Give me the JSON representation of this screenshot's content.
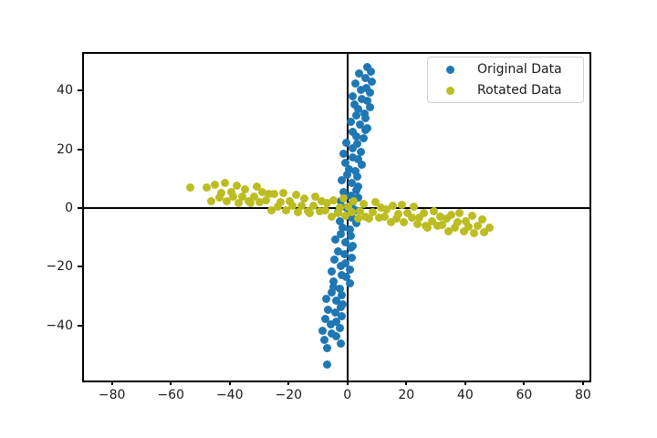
{
  "figure": {
    "background": "#ffffff",
    "plot_background": "#ffffff",
    "spine_color": "#000000"
  },
  "chart_data": {
    "type": "scatter",
    "title": "",
    "xlabel": "",
    "ylabel": "",
    "xlim": [
      -89.5,
      82.2
    ],
    "ylim": [
      -58.8,
      52.6
    ],
    "aspect": "equal",
    "grid": false,
    "zero_lines": {
      "horizontal_y": 0,
      "vertical_x": 0,
      "color": "#000000"
    },
    "x_ticks": [
      -80,
      -60,
      -40,
      -20,
      0,
      20,
      40,
      60,
      80
    ],
    "x_tick_labels": [
      "−80",
      "−60",
      "−40",
      "−20",
      "0",
      "20",
      "40",
      "60",
      "80"
    ],
    "y_ticks": [
      40,
      20,
      0,
      -20,
      -40
    ],
    "y_tick_labels": [
      "40",
      "20",
      "0",
      "−20",
      "−40"
    ],
    "legend": {
      "position": "upper right",
      "entries": [
        {
          "label": "Original Data",
          "color": "#1f77b4"
        },
        {
          "label": "Rotated Data",
          "color": "#bcbd22"
        }
      ]
    },
    "series": [
      {
        "name": "Original Data",
        "color": "#1f77b4",
        "marker_size_px": 9,
        "points": [
          [
            6.7,
            48.2
          ],
          [
            8.1,
            46.5
          ],
          [
            3.8,
            45.8
          ],
          [
            6.1,
            44.2
          ],
          [
            8.4,
            43.1
          ],
          [
            2.7,
            42.5
          ],
          [
            6.3,
            41.0
          ],
          [
            4.6,
            40.2
          ],
          [
            7.8,
            39.5
          ],
          [
            1.7,
            38.1
          ],
          [
            4.9,
            37.3
          ],
          [
            6.6,
            36.6
          ],
          [
            2.3,
            35.2
          ],
          [
            7.8,
            34.4
          ],
          [
            3.5,
            33.8
          ],
          [
            5.7,
            32.1
          ],
          [
            2.9,
            31.5
          ],
          [
            6.2,
            30.7
          ],
          [
            1.0,
            29.3
          ],
          [
            4.4,
            28.6
          ],
          [
            6.7,
            27.2
          ],
          [
            6.1,
            26.5
          ],
          [
            1.8,
            25.9
          ],
          [
            3.1,
            24.3
          ],
          [
            5.5,
            23.7
          ],
          [
            -0.4,
            22.4
          ],
          [
            3.4,
            21.8
          ],
          [
            1.7,
            20.5
          ],
          [
            4.7,
            19.2
          ],
          [
            -1.2,
            18.6
          ],
          [
            1.9,
            17.3
          ],
          [
            3.6,
            16.8
          ],
          [
            -0.7,
            15.4
          ],
          [
            4.9,
            14.7
          ],
          [
            0.4,
            13.2
          ],
          [
            2.8,
            12.6
          ],
          [
            -0.2,
            11.3
          ],
          [
            3.2,
            10.8
          ],
          [
            -2.0,
            9.4
          ],
          [
            1.4,
            8.7
          ],
          [
            3.7,
            7.3
          ],
          [
            3.0,
            6.2
          ],
          [
            -1.3,
            5.5
          ],
          [
            1.1,
            4.1
          ],
          [
            3.5,
            3.6
          ],
          [
            -2.4,
            2.2
          ],
          [
            1.4,
            1.5
          ],
          [
            -0.4,
            0.3
          ],
          [
            2.7,
            -0.8
          ],
          [
            -3.2,
            -1.4
          ],
          [
            -0.1,
            -2.7
          ],
          [
            1.6,
            -3.3
          ],
          [
            -2.7,
            -4.6
          ],
          [
            2.9,
            -5.2
          ],
          [
            -1.6,
            -6.8
          ],
          [
            0.8,
            -7.4
          ],
          [
            -2.2,
            -8.9
          ],
          [
            1.2,
            -9.5
          ],
          [
            -4.0,
            -10.8
          ],
          [
            -0.7,
            -11.6
          ],
          [
            1.7,
            -12.9
          ],
          [
            1.1,
            -13.5
          ],
          [
            -3.3,
            -14.8
          ],
          [
            -0.9,
            -15.6
          ],
          [
            1.4,
            -16.9
          ],
          [
            -4.4,
            -17.5
          ],
          [
            -0.7,
            -18.8
          ],
          [
            -2.4,
            -19.6
          ],
          [
            0.7,
            -20.9
          ],
          [
            -5.3,
            -21.7
          ],
          [
            -2.1,
            -22.8
          ],
          [
            -0.5,
            -23.6
          ],
          [
            -4.7,
            -24.9
          ],
          [
            0.8,
            -25.7
          ],
          [
            -4.8,
            -26.8
          ],
          [
            -2.6,
            -27.6
          ],
          [
            -5.5,
            -28.9
          ],
          [
            -2.0,
            -29.7
          ],
          [
            -7.2,
            -30.8
          ],
          [
            -3.8,
            -31.6
          ],
          [
            -1.6,
            -32.9
          ],
          [
            -2.2,
            -33.7
          ],
          [
            -6.5,
            -34.8
          ],
          [
            -4.0,
            -35.6
          ],
          [
            -1.8,
            -36.9
          ],
          [
            -7.6,
            -37.7
          ],
          [
            -3.9,
            -38.8
          ],
          [
            -5.6,
            -39.6
          ],
          [
            -2.5,
            -40.9
          ],
          [
            -8.5,
            -41.7
          ],
          [
            -5.2,
            -42.8
          ],
          [
            -3.7,
            -43.6
          ],
          [
            -7.9,
            -44.9
          ],
          [
            -2.4,
            -46.2
          ],
          [
            -6.9,
            -47.8
          ],
          [
            -7.0,
            -53.4
          ]
        ]
      },
      {
        "name": "Rotated Data",
        "color": "#bcbd22",
        "marker_size_px": 9,
        "points": [
          [
            48.2,
            -6.7
          ],
          [
            46.5,
            -8.1
          ],
          [
            45.8,
            -3.8
          ],
          [
            44.2,
            -6.1
          ],
          [
            43.1,
            -8.4
          ],
          [
            42.5,
            -2.7
          ],
          [
            41.0,
            -6.3
          ],
          [
            40.2,
            -4.6
          ],
          [
            39.5,
            -7.8
          ],
          [
            38.1,
            -1.7
          ],
          [
            37.3,
            -4.9
          ],
          [
            36.6,
            -6.6
          ],
          [
            35.2,
            -2.3
          ],
          [
            34.4,
            -7.8
          ],
          [
            33.8,
            -3.5
          ],
          [
            32.1,
            -5.7
          ],
          [
            31.5,
            -2.9
          ],
          [
            30.7,
            -6.2
          ],
          [
            29.3,
            -1.0
          ],
          [
            28.6,
            -4.4
          ],
          [
            27.2,
            -6.7
          ],
          [
            26.5,
            -6.1
          ],
          [
            25.9,
            -1.8
          ],
          [
            24.3,
            -3.1
          ],
          [
            23.7,
            -5.5
          ],
          [
            22.4,
            0.4
          ],
          [
            21.8,
            -3.4
          ],
          [
            20.5,
            -1.7
          ],
          [
            19.2,
            -4.7
          ],
          [
            18.6,
            1.2
          ],
          [
            17.3,
            -1.9
          ],
          [
            16.8,
            -3.6
          ],
          [
            15.4,
            0.7
          ],
          [
            14.7,
            -4.9
          ],
          [
            13.2,
            -0.4
          ],
          [
            12.6,
            -2.8
          ],
          [
            11.3,
            0.2
          ],
          [
            10.8,
            -3.2
          ],
          [
            9.4,
            2.0
          ],
          [
            8.7,
            -1.4
          ],
          [
            7.3,
            -3.7
          ],
          [
            6.2,
            -3.0
          ],
          [
            5.5,
            1.3
          ],
          [
            4.1,
            -1.1
          ],
          [
            3.6,
            -3.5
          ],
          [
            2.2,
            2.4
          ],
          [
            1.5,
            -1.4
          ],
          [
            0.3,
            0.4
          ],
          [
            -0.8,
            -2.7
          ],
          [
            -1.4,
            3.2
          ],
          [
            -2.7,
            0.1
          ],
          [
            -3.3,
            -1.6
          ],
          [
            -4.6,
            2.7
          ],
          [
            -5.2,
            -2.9
          ],
          [
            -6.8,
            1.6
          ],
          [
            -7.4,
            -0.8
          ],
          [
            -8.9,
            2.2
          ],
          [
            -9.5,
            -1.2
          ],
          [
            -10.8,
            4.0
          ],
          [
            -11.6,
            0.7
          ],
          [
            -12.9,
            -1.7
          ],
          [
            -13.5,
            -1.1
          ],
          [
            -14.8,
            3.3
          ],
          [
            -15.6,
            0.9
          ],
          [
            -16.9,
            -1.4
          ],
          [
            -17.5,
            4.4
          ],
          [
            -18.8,
            0.7
          ],
          [
            -19.6,
            2.4
          ],
          [
            -20.9,
            -0.7
          ],
          [
            -21.7,
            5.3
          ],
          [
            -22.8,
            2.1
          ],
          [
            -23.6,
            0.5
          ],
          [
            -24.9,
            4.7
          ],
          [
            -25.7,
            -0.8
          ],
          [
            -26.8,
            4.8
          ],
          [
            -27.6,
            2.6
          ],
          [
            -28.9,
            5.5
          ],
          [
            -29.7,
            2.0
          ],
          [
            -30.8,
            7.2
          ],
          [
            -31.6,
            3.8
          ],
          [
            -32.9,
            1.6
          ],
          [
            -33.7,
            2.2
          ],
          [
            -34.8,
            6.5
          ],
          [
            -35.6,
            4.0
          ],
          [
            -36.9,
            1.8
          ],
          [
            -37.7,
            7.6
          ],
          [
            -38.8,
            3.9
          ],
          [
            -39.6,
            5.6
          ],
          [
            -40.9,
            2.5
          ],
          [
            -41.7,
            8.5
          ],
          [
            -42.8,
            5.2
          ],
          [
            -43.6,
            3.7
          ],
          [
            -44.9,
            7.9
          ],
          [
            -46.2,
            2.4
          ],
          [
            -47.8,
            6.9
          ],
          [
            -53.4,
            7.0
          ]
        ]
      }
    ]
  }
}
